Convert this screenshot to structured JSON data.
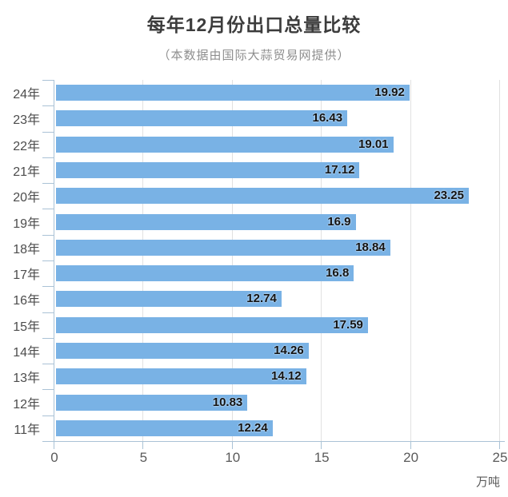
{
  "chart_data": {
    "type": "bar",
    "orientation": "horizontal",
    "title": "每年12月份出口总量比较",
    "subtitle": "（本数据由国际大蒜贸易网提供）",
    "categories": [
      "24年",
      "23年",
      "22年",
      "21年",
      "20年",
      "19年",
      "18年",
      "17年",
      "16年",
      "15年",
      "14年",
      "13年",
      "12年",
      "11年"
    ],
    "values": [
      19.92,
      16.43,
      19.01,
      17.12,
      23.25,
      16.9,
      18.84,
      16.8,
      12.74,
      17.59,
      14.26,
      14.12,
      10.83,
      12.24
    ],
    "xlabel": "万吨",
    "ylabel": "",
    "x_ticks": [
      0,
      5,
      10,
      15,
      20,
      25
    ],
    "xlim": [
      0,
      25
    ],
    "grid": true,
    "legend": false,
    "colors": {
      "bar": "#79b2e5",
      "axis": "#aac2d6",
      "gridline": "#e1e1e1",
      "title": "#3c3c3c",
      "subtitle": "#8e8e8e",
      "category_label": "#4c4c4c",
      "tick_label": "#5a5a5a",
      "value_label": "#131313"
    }
  }
}
